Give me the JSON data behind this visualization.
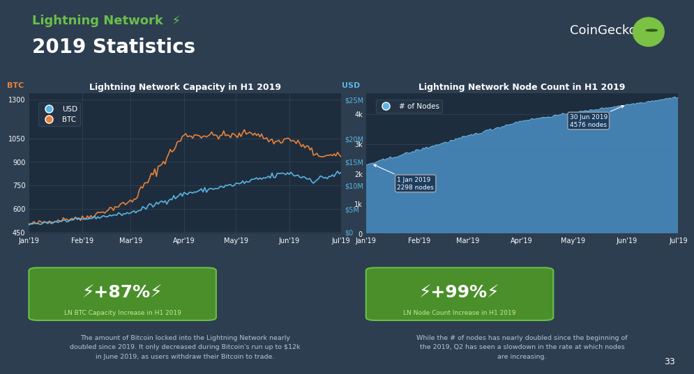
{
  "bg_color": "#2d3e50",
  "chart_bg": "#1e2d3d",
  "title_text": "Lightning Network",
  "subtitle_text": "2019 Statistics",
  "title_color": "#6abf4b",
  "subtitle_color": "#ffffff",
  "coingecko_text": "CoinGecko",
  "left_chart_title": "Lightning Network Capacity in H1 2019",
  "right_chart_title": "Lightning Network Node Count in H1 2019",
  "xtick_labels": [
    "Jan'19",
    "Feb'19",
    "Mar'19",
    "Apr'19",
    "May'19",
    "Jun'19",
    "Jul'19"
  ],
  "btc_color": "#e8823a",
  "usd_color": "#5ab4e5",
  "node_bar_color": "#4a90c4",
  "node_line_color": "#6ab0e0",
  "left_yticks_btc": [
    450,
    600,
    750,
    900,
    1050,
    1300
  ],
  "left_yticks_usd": [
    "$0",
    "$5M",
    "$10M",
    "$15M",
    "$20M",
    "$25M"
  ],
  "right_yticks_nodes": [
    0,
    1000,
    2000,
    3000,
    4000
  ],
  "right_ytick_labels": [
    "0",
    "1k",
    "2k",
    "3k",
    "4k"
  ],
  "stat_left_pct": "+87%",
  "stat_left_label": "LN BTC Capacity Increase in H1 2019",
  "stat_right_pct": "+99%",
  "stat_right_label": "LN Node Count Increase in H1 2019",
  "left_desc": "The amount of Bitcoin locked into the Lightning Network nearly\ndoubled since 2019. It only decreased during Bitcoin's run up to $12k\nin June 2019, as users withdraw their Bitcoin to trade.",
  "right_desc": "While the # of nodes has nearly doubled since the beginning of\nthe 2019, Q2 has seen a slowdown in the rate at which nodes\nare increasing.",
  "page_num": "33"
}
